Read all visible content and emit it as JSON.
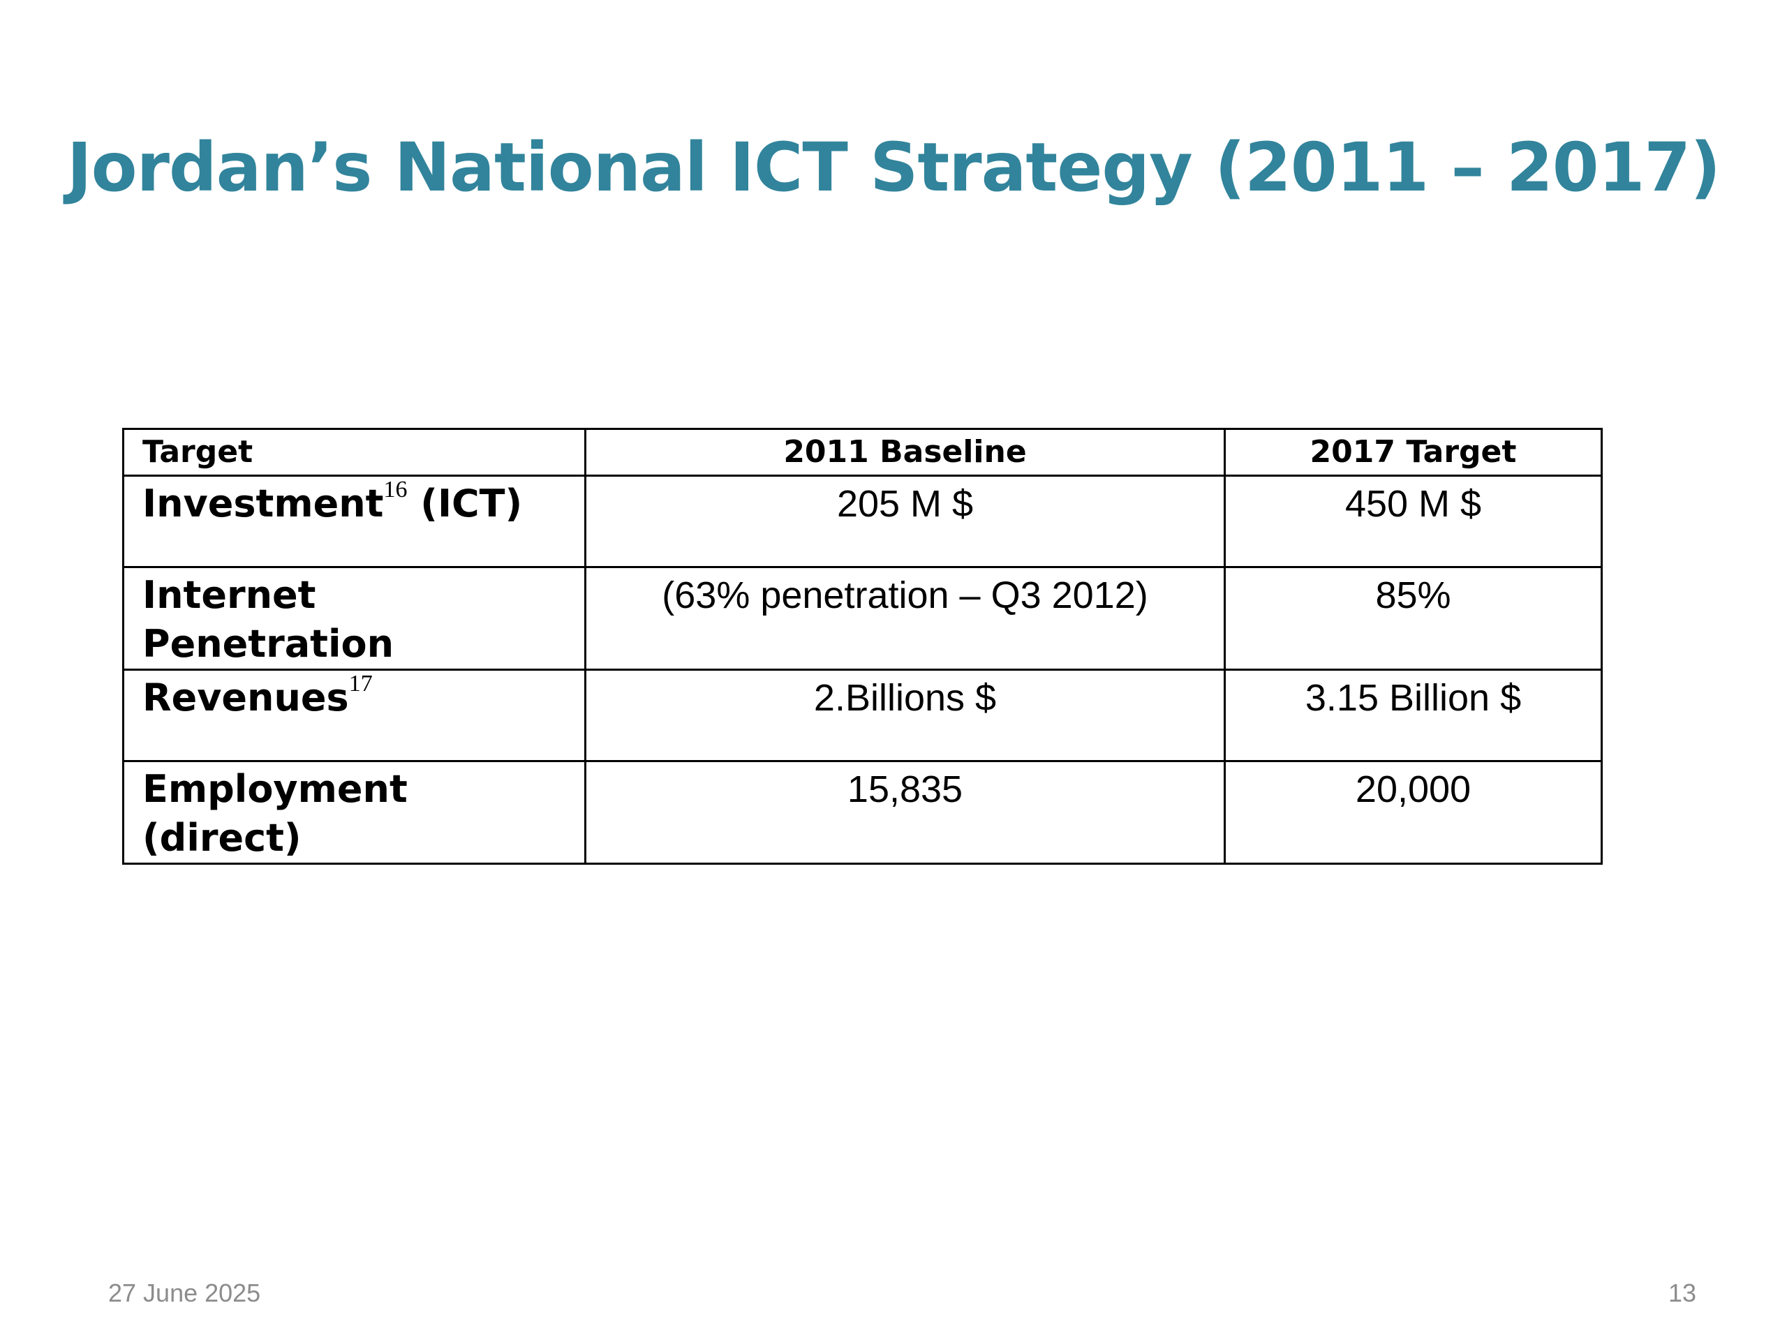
{
  "slide": {
    "title": "Jordan’s National ICT Strategy (2011 – 2017)"
  },
  "table": {
    "headers": [
      "Target",
      "2011 Baseline",
      "2017 Target"
    ],
    "rows": [
      {
        "label": "Investment",
        "footnote": "16",
        "label_suffix": " (ICT)",
        "baseline": "205 M $",
        "target": "450 M $"
      },
      {
        "label": "Internet Penetration",
        "footnote": "",
        "label_suffix": "",
        "baseline": "(63% penetration – Q3 2012)",
        "target": "85%"
      },
      {
        "label": "Revenues",
        "footnote": "17",
        "label_suffix": "",
        "baseline": "2.Billions $",
        "target": "3.15 Billion $"
      },
      {
        "label": "Employment (direct)",
        "footnote": "",
        "label_suffix": "",
        "baseline": "15,835",
        "target": "20,000"
      }
    ]
  },
  "footer": {
    "date": "27 June 2025",
    "page_number": "13"
  },
  "colors": {
    "title": "#31849b",
    "footer_text": "#8c8c8c",
    "table_border": "#000000"
  }
}
